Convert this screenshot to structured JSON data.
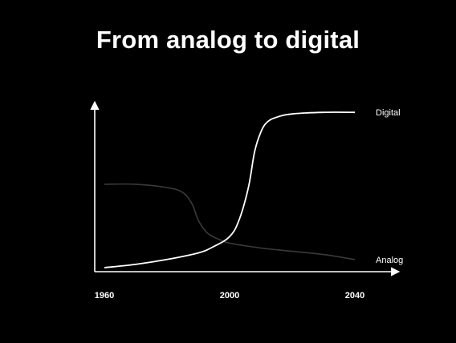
{
  "slide": {
    "title": "From analog to digital"
  },
  "colors": {
    "background": "#000000",
    "axis": "#ffffff",
    "digital_line": "#ffffff",
    "analog_line": "#3a3a3a",
    "text": "#ffffff"
  },
  "chart_data": {
    "type": "line",
    "title": "",
    "xlabel": "",
    "ylabel": "",
    "x_ticks": [
      1960,
      2000,
      2040
    ],
    "x_tick_labels": [
      "1960",
      "2000",
      "2040"
    ],
    "xlim": [
      1960,
      2040
    ],
    "ylim": [
      0,
      100
    ],
    "y_tick_labels": [],
    "grid": false,
    "legend": "inline labels at right end of each line",
    "series": [
      {
        "name": "Digital",
        "color": "#ffffff",
        "x": [
          1960,
          1970,
          1980,
          1990,
          1995,
          2000,
          2003,
          2006,
          2008,
          2010,
          2012,
          2015,
          2020,
          2030,
          2040
        ],
        "y": [
          1,
          3,
          6,
          10,
          14,
          20,
          30,
          50,
          72,
          84,
          90,
          93,
          95,
          96,
          96
        ]
      },
      {
        "name": "Analog",
        "color": "#3a3a3a",
        "x": [
          1960,
          1970,
          1980,
          1985,
          1988,
          1990,
          1993,
          1997,
          2000,
          2010,
          2020,
          2030,
          2040
        ],
        "y": [
          52,
          52,
          50,
          47,
          40,
          30,
          22,
          18,
          16,
          13,
          11,
          9,
          6
        ]
      }
    ]
  }
}
